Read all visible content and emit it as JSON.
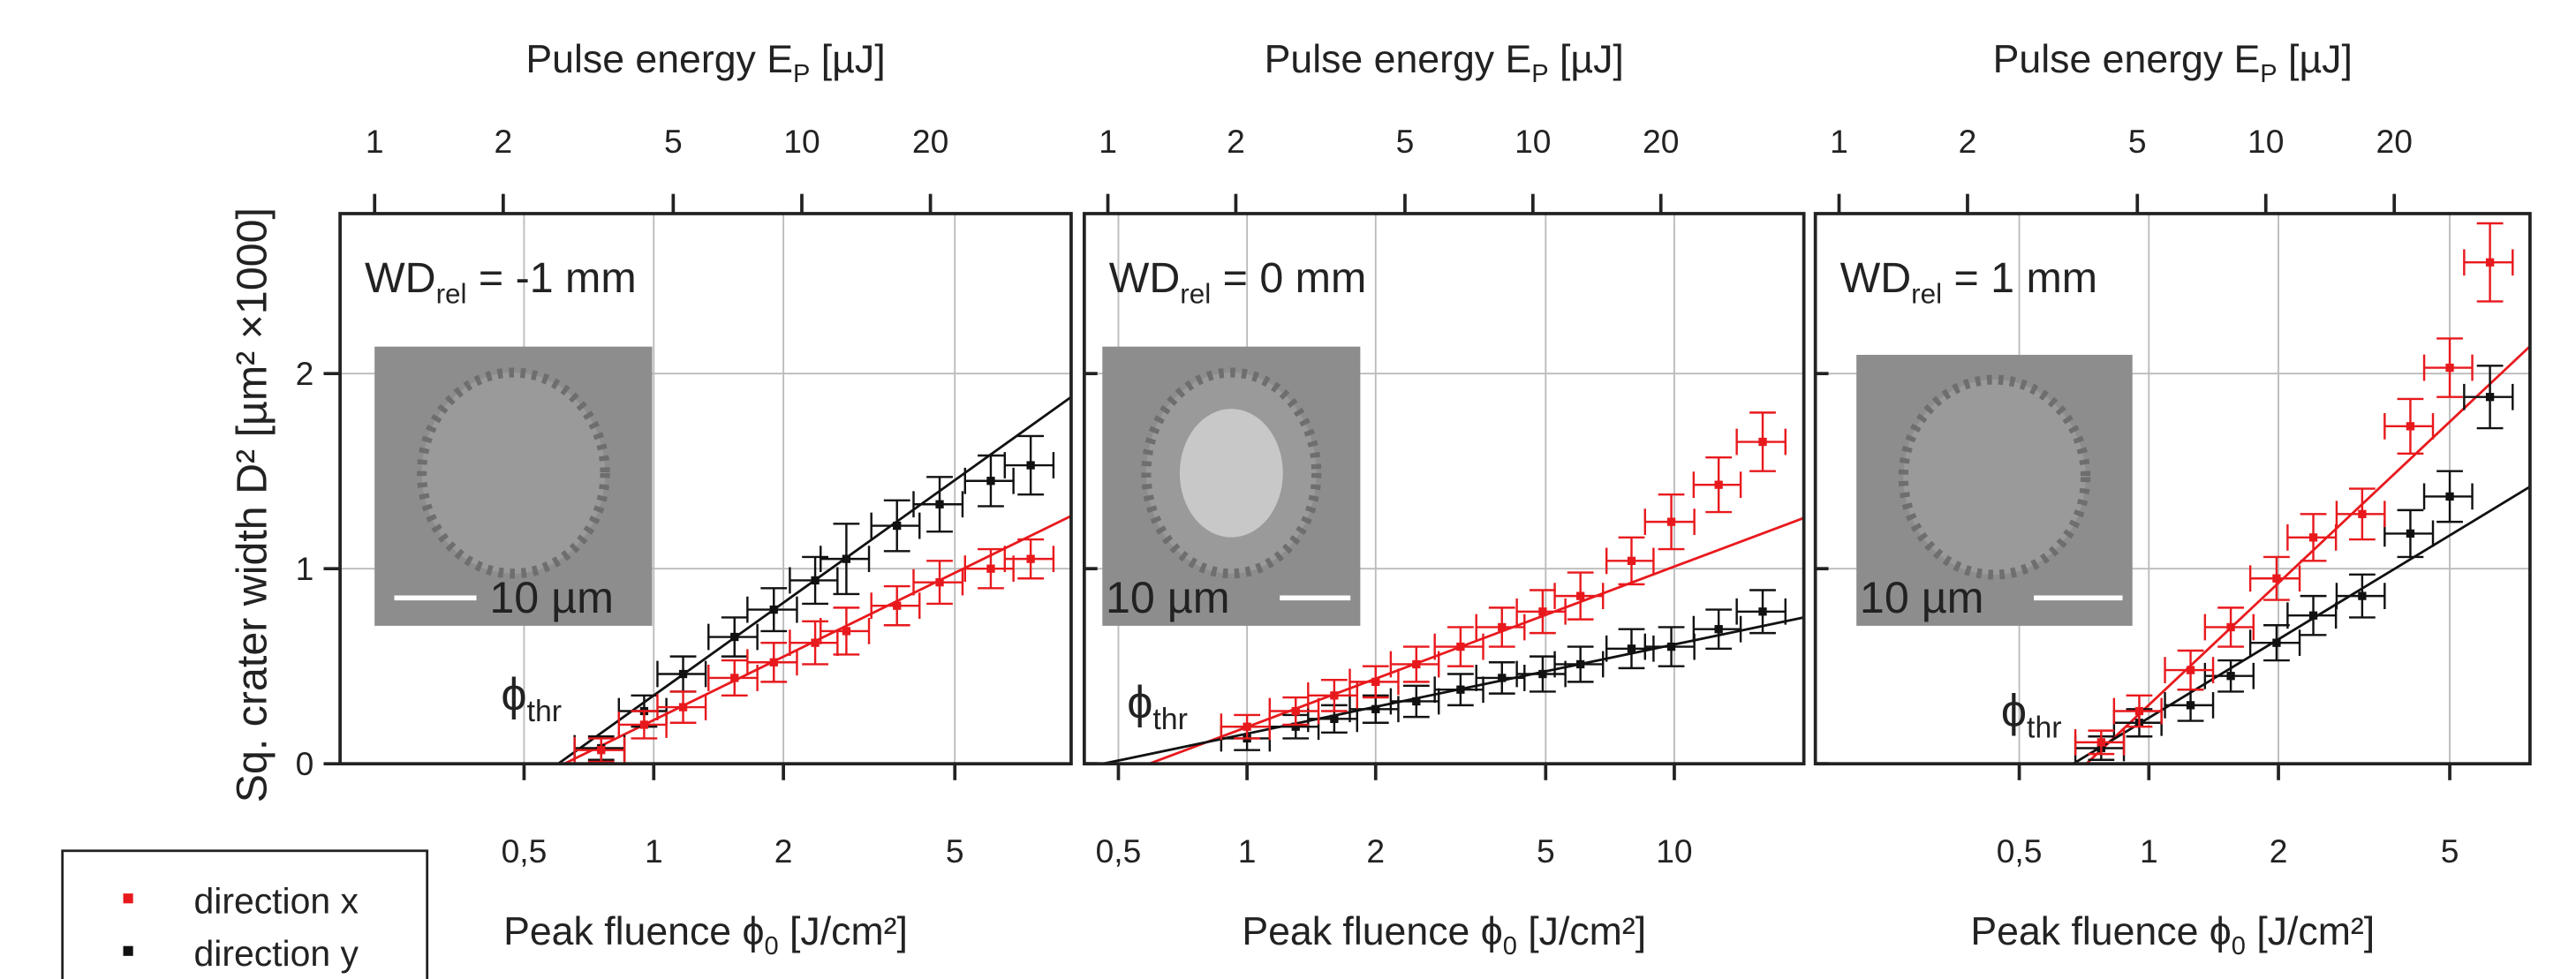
{
  "chart_data": [
    {
      "type": "scatter",
      "x2label": {
        "text": "Pulse energy E",
        "sub": "P",
        "suffix": " [µJ]"
      },
      "xlabel": {
        "text": "Peak fluence ϕ",
        "sub": "0",
        "suffix": " [J/cm²]"
      },
      "ylabel": "Sq. crater width D² [µm² ×1000]",
      "annotation": {
        "text": "WD",
        "sub": "rel",
        "suffix": " = -1 mm"
      },
      "threshold_label": {
        "text": "ϕ",
        "sub": "thr"
      },
      "inset_scale": "10 µm",
      "xscale": "log",
      "grid": true,
      "ytick_labels": true,
      "xlim": [
        0.187,
        9.31
      ],
      "xticks": [
        {
          "value": 0.5,
          "label": "0,5"
        },
        1,
        2,
        5
      ],
      "x2lim": [
        0.83,
        42.7
      ],
      "x2ticks": [
        1,
        2,
        5,
        10,
        20
      ],
      "ylim": [
        0,
        2.82
      ],
      "yticks": [
        0,
        1,
        2
      ],
      "series": [
        {
          "name": "direction x",
          "color": "#e8191d",
          "x": [
            0.755,
            0.95,
            1.17,
            1.54,
            1.9,
            2.37,
            2.8,
            3.67,
            4.61,
            6.06,
            7.5
          ],
          "values": [
            0.07,
            0.2,
            0.29,
            0.44,
            0.52,
            0.62,
            0.68,
            0.81,
            0.93,
            1.0,
            1.05
          ],
          "xerr": [
            0.1,
            0.12,
            0.15,
            0.2,
            0.25,
            0.3,
            0.36,
            0.47,
            0.6,
            0.78,
            0.97
          ],
          "yerr": [
            0.06,
            0.07,
            0.08,
            0.09,
            0.1,
            0.11,
            0.12,
            0.1,
            0.11,
            0.1,
            0.1
          ]
        },
        {
          "name": "direction y",
          "color": "#111111",
          "x": [
            0.755,
            0.95,
            1.17,
            1.54,
            1.9,
            2.37,
            2.8,
            3.67,
            4.61,
            6.06,
            7.5
          ],
          "values": [
            0.08,
            0.27,
            0.46,
            0.65,
            0.79,
            0.94,
            1.05,
            1.22,
            1.33,
            1.45,
            1.53
          ],
          "xerr": [
            0.1,
            0.12,
            0.15,
            0.2,
            0.25,
            0.3,
            0.36,
            0.47,
            0.6,
            0.78,
            0.97
          ],
          "yerr": [
            0.06,
            0.08,
            0.09,
            0.1,
            0.11,
            0.12,
            0.18,
            0.13,
            0.14,
            0.13,
            0.15
          ]
        }
      ],
      "fits": [
        {
          "color": "#e8191d",
          "x": [
            0.62,
            9.31
          ],
          "y": [
            0,
            1.27
          ]
        },
        {
          "color": "#111111",
          "x": [
            0.6,
            9.31
          ],
          "y": [
            0,
            1.88
          ]
        }
      ]
    },
    {
      "type": "scatter",
      "x2label": {
        "text": "Pulse energy E",
        "sub": "P",
        "suffix": " [µJ]"
      },
      "xlabel": {
        "text": "Peak fluence ϕ",
        "sub": "0",
        "suffix": " [J/cm²]"
      },
      "annotation": {
        "text": "WD",
        "sub": "rel",
        "suffix": " = 0 mm"
      },
      "threshold_label": {
        "text": "ϕ",
        "sub": "thr"
      },
      "inset_scale": "10 µm",
      "xscale": "log",
      "grid": true,
      "xlim": [
        0.416,
        20.1
      ],
      "xticks": [
        {
          "value": 0.5,
          "label": "0,5"
        },
        1,
        2,
        5,
        10
      ],
      "x2lim": [
        0.88,
        43.4
      ],
      "x2ticks": [
        1,
        2,
        5,
        10,
        20
      ],
      "ylim": [
        0,
        2.82
      ],
      "yticks": [
        0,
        1,
        2
      ],
      "series": [
        {
          "color": "#e8191d",
          "x": [
            1.0,
            1.3,
            1.6,
            2.0,
            2.49,
            3.16,
            3.95,
            4.92,
            6.03,
            7.94,
            9.84,
            12.7,
            16.1
          ],
          "values": [
            0.19,
            0.27,
            0.35,
            0.42,
            0.51,
            0.6,
            0.7,
            0.78,
            0.86,
            1.04,
            1.24,
            1.43,
            1.65
          ],
          "xerr": [
            0.13,
            0.17,
            0.21,
            0.26,
            0.32,
            0.41,
            0.51,
            0.64,
            0.78,
            1.0,
            1.3,
            1.6,
            2.1
          ],
          "yerr": [
            0.06,
            0.07,
            0.08,
            0.08,
            0.09,
            0.1,
            0.1,
            0.11,
            0.12,
            0.12,
            0.14,
            0.14,
            0.15
          ]
        },
        {
          "color": "#111111",
          "x": [
            1.0,
            1.3,
            1.6,
            2.0,
            2.49,
            3.16,
            3.95,
            4.92,
            6.03,
            7.94,
            9.84,
            12.7,
            16.1
          ],
          "values": [
            0.13,
            0.19,
            0.23,
            0.28,
            0.32,
            0.38,
            0.44,
            0.46,
            0.51,
            0.59,
            0.6,
            0.69,
            0.78
          ],
          "xerr": [
            0.13,
            0.17,
            0.21,
            0.26,
            0.32,
            0.41,
            0.51,
            0.64,
            0.78,
            1.0,
            1.3,
            1.6,
            2.1
          ],
          "yerr": [
            0.06,
            0.06,
            0.07,
            0.07,
            0.08,
            0.08,
            0.08,
            0.09,
            0.09,
            0.1,
            0.1,
            0.1,
            0.11
          ]
        }
      ],
      "fits": [
        {
          "color": "#e8191d",
          "x": [
            0.59,
            20.1
          ],
          "y": [
            0,
            1.26
          ]
        },
        {
          "color": "#111111",
          "x": [
            0.46,
            20.1
          ],
          "y": [
            0,
            0.75
          ]
        }
      ]
    },
    {
      "type": "scatter",
      "x2label": {
        "text": "Pulse energy E",
        "sub": "P",
        "suffix": " [µJ]"
      },
      "xlabel": {
        "text": "Peak fluence ϕ",
        "sub": "0",
        "suffix": " [J/cm²]"
      },
      "annotation": {
        "text": "WD",
        "sub": "rel",
        "suffix": " = 1 mm"
      },
      "threshold_label": {
        "text": "ϕ",
        "sub": "thr"
      },
      "inset_scale": "10 µm",
      "xscale": "log",
      "grid": true,
      "xlim": [
        0.168,
        7.68
      ],
      "xticks": [
        {
          "value": 0.5,
          "label": "0,5"
        },
        1,
        2,
        5
      ],
      "x2lim": [
        0.88,
        41.6
      ],
      "x2ticks": [
        1,
        2,
        5,
        10,
        20
      ],
      "ylim": [
        0,
        2.82
      ],
      "yticks": [
        0,
        1,
        2
      ],
      "series": [
        {
          "color": "#e8191d",
          "x": [
            0.775,
            0.95,
            1.25,
            1.55,
            1.98,
            2.41,
            3.13,
            4.05,
            5.0,
            6.2
          ],
          "values": [
            0.11,
            0.27,
            0.48,
            0.7,
            0.95,
            1.16,
            1.28,
            1.73,
            2.03,
            2.57
          ],
          "xerr": [
            0.1,
            0.12,
            0.16,
            0.2,
            0.26,
            0.31,
            0.4,
            0.52,
            0.64,
            0.8
          ],
          "yerr": [
            0.06,
            0.08,
            0.1,
            0.1,
            0.11,
            0.12,
            0.13,
            0.14,
            0.15,
            0.2
          ]
        },
        {
          "color": "#111111",
          "x": [
            0.775,
            0.95,
            1.25,
            1.55,
            1.98,
            2.41,
            3.13,
            4.05,
            5.0,
            6.2
          ],
          "values": [
            0.08,
            0.21,
            0.3,
            0.45,
            0.62,
            0.76,
            0.86,
            1.18,
            1.37,
            1.88
          ],
          "xerr": [
            0.1,
            0.12,
            0.16,
            0.2,
            0.26,
            0.31,
            0.4,
            0.52,
            0.64,
            0.8
          ],
          "yerr": [
            0.06,
            0.07,
            0.08,
            0.08,
            0.09,
            0.1,
            0.11,
            0.12,
            0.13,
            0.16
          ]
        }
      ],
      "fits": [
        {
          "color": "#e8191d",
          "x": [
            0.716,
            7.68
          ],
          "y": [
            0,
            2.14
          ]
        },
        {
          "color": "#111111",
          "x": [
            0.667,
            7.68
          ],
          "y": [
            0,
            1.42
          ]
        }
      ]
    }
  ]
}
